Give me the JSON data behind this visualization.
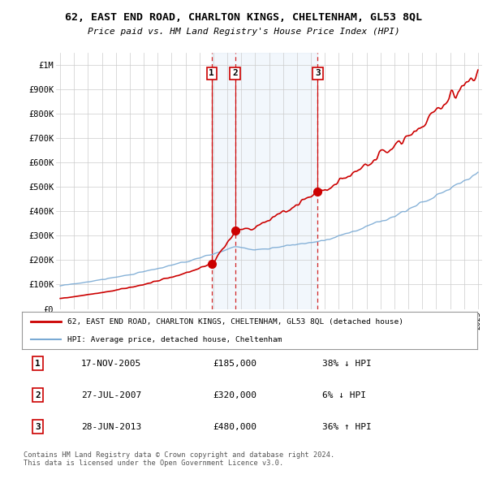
{
  "title": "62, EAST END ROAD, CHARLTON KINGS, CHELTENHAM, GL53 8QL",
  "subtitle": "Price paid vs. HM Land Registry's House Price Index (HPI)",
  "yticks": [
    0,
    100000,
    200000,
    300000,
    400000,
    500000,
    600000,
    700000,
    800000,
    900000,
    1000000
  ],
  "ytick_labels": [
    "£0",
    "£100K",
    "£200K",
    "£300K",
    "£400K",
    "£500K",
    "£600K",
    "£700K",
    "£800K",
    "£900K",
    "£1M"
  ],
  "sale_years": [
    2005.88,
    2007.56,
    2013.49
  ],
  "sale_prices": [
    185000,
    320000,
    480000
  ],
  "sale_labels": [
    "1",
    "2",
    "3"
  ],
  "sale_info": [
    {
      "num": "1",
      "date": "17-NOV-2005",
      "price": "£185,000",
      "hpi": "38% ↓ HPI"
    },
    {
      "num": "2",
      "date": "27-JUL-2007",
      "price": "£320,000",
      "hpi": "6% ↓ HPI"
    },
    {
      "num": "3",
      "date": "28-JUN-2013",
      "price": "£480,000",
      "hpi": "36% ↑ HPI"
    }
  ],
  "legend_line1": "62, EAST END ROAD, CHARLTON KINGS, CHELTENHAM, GL53 8QL (detached house)",
  "legend_line2": "HPI: Average price, detached house, Cheltenham",
  "footer": "Contains HM Land Registry data © Crown copyright and database right 2024.\nThis data is licensed under the Open Government Licence v3.0.",
  "hpi_color": "#7aaad4",
  "price_color": "#cc0000",
  "background_color": "#ffffff",
  "grid_color": "#cccccc",
  "shade_color": "#ddeeff"
}
